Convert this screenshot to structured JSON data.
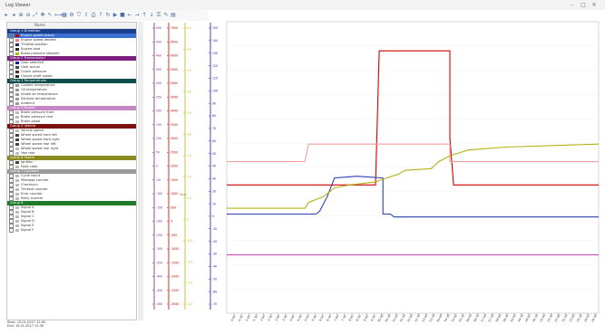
{
  "app": {
    "title": "Log Viewer"
  },
  "window_controls": {
    "minimize": "–",
    "maximize": "□",
    "close": "✕"
  },
  "toolbar": {
    "icons": [
      "open-icon",
      "save-icon",
      "zoom-in-icon",
      "zoom-out-icon",
      "fit-icon",
      "pan-icon",
      "cursor-icon",
      "measure-icon",
      "grid-icon",
      "settings-icon",
      "filter-icon",
      "export-icon",
      "print-icon",
      "help-icon",
      "refresh-icon",
      "play-icon",
      "stop-icon",
      "arrow-left-icon",
      "arrow-right-icon",
      "arrow-up-icon",
      "arrow-down-icon",
      "lock-icon",
      "marker-icon",
      "chart-icon"
    ],
    "glyphs": [
      "▸",
      "◂",
      "⊕",
      "⊖",
      "⤢",
      "✥",
      "↖",
      "⟷",
      "▦",
      "⚙",
      "⛉",
      "⇪",
      "⎙",
      "?",
      "↻",
      "▶",
      "■",
      "←",
      "→",
      "↑",
      "↓",
      "⚿",
      "✎",
      "▤"
    ]
  },
  "panel": {
    "header_label": "Name",
    "groups": [
      {
        "label": "Group 1 Drivetrain",
        "color": "#1b3f8b",
        "rows": [
          {
            "label": "Engine speed actual",
            "swatch": "#c00000",
            "selected": true
          },
          {
            "label": "Engine speed desired",
            "swatch": "#f08080"
          },
          {
            "label": "Throttle position",
            "swatch": "#2a2a6a"
          },
          {
            "label": "Engine load",
            "swatch": "#2a2a2a"
          },
          {
            "label": "Boost pressure setpoint",
            "swatch": "#b8b800"
          }
        ]
      },
      {
        "label": "Group 2 Transmission",
        "color": "#7b1f7b",
        "rows": [
          {
            "label": "Gear selected",
            "swatch": "#1a1aa0"
          },
          {
            "label": "Gear actual",
            "swatch": "#444"
          },
          {
            "label": "Clutch pressure",
            "swatch": "#6a2a2a"
          },
          {
            "label": "Output shaft speed",
            "swatch": "#2a2a2a"
          }
        ]
      },
      {
        "label": "Group 3 Temperatures",
        "color": "#0f4c4c",
        "rows": [
          {
            "label": "Coolant temperature",
            "swatch": "#999"
          },
          {
            "label": "Oil temperature",
            "swatch": "#999"
          },
          {
            "label": "Intake air temperature",
            "swatch": "#999"
          },
          {
            "label": "Exhaust temperature",
            "swatch": "#999"
          },
          {
            "label": "Ambient",
            "swatch": "#999"
          }
        ]
      },
      {
        "label": "Group 4 Brakes",
        "color": "#c487c4",
        "rows": [
          {
            "label": "Brake pressure front",
            "swatch": "#bbb"
          },
          {
            "label": "Brake pressure rear",
            "swatch": "#bbb"
          },
          {
            "label": "Brake pedal",
            "swatch": "#bbb"
          }
        ]
      },
      {
        "label": "Group 5 Vehicle",
        "color": "#7b1010",
        "rows": [
          {
            "label": "Vehicle speed",
            "swatch": "#bbb"
          },
          {
            "label": "Wheel speed front left",
            "swatch": "#444"
          },
          {
            "label": "Wheel speed front right",
            "swatch": "#444"
          },
          {
            "label": "Wheel speed rear left",
            "swatch": "#444"
          },
          {
            "label": "Wheel speed rear right",
            "swatch": "#bbb"
          },
          {
            "label": "Yaw rate",
            "swatch": "#bbb"
          }
        ]
      },
      {
        "label": "Group 6 Status",
        "color": "#8a8a20",
        "rows": [
          {
            "label": "Ignition",
            "swatch": "#444"
          },
          {
            "label": "Fault code",
            "swatch": "#bbb"
          }
        ]
      },
      {
        "label": "Group 7 Counters",
        "color": "#9a9a9a",
        "rows": [
          {
            "label": "Cycle count",
            "swatch": "#bbb"
          },
          {
            "label": "Message counter",
            "swatch": "#bbb"
          },
          {
            "label": "Checksum",
            "swatch": "#bbb"
          },
          {
            "label": "Timeout counter",
            "swatch": "#bbb"
          },
          {
            "label": "Error counter",
            "swatch": "#bbb"
          },
          {
            "label": "Retry counter",
            "swatch": "#bbb"
          }
        ]
      },
      {
        "label": "Group 8",
        "color": "#1f7a2a",
        "rows": [
          {
            "label": "Signal A",
            "swatch": "#bbb"
          },
          {
            "label": "Signal B",
            "swatch": "#bbb"
          },
          {
            "label": "Signal C",
            "swatch": "#bbb"
          },
          {
            "label": "Signal D",
            "swatch": "#bbb"
          },
          {
            "label": "Signal E",
            "swatch": "#bbb"
          },
          {
            "label": "Signal F",
            "swatch": "#bbb"
          }
        ]
      }
    ]
  },
  "status_bar": {
    "line1": "Start: 10.01.2017 12:00",
    "line2": "End: 10.01.2017 12:30"
  },
  "plot": {
    "axes": [
      {
        "color": "#7b1f7b",
        "labels": [
          "500",
          "450",
          "400",
          "350",
          "300",
          "250",
          "200",
          "150",
          "100",
          "50",
          "0",
          "-50",
          "-100",
          "-150",
          "-200",
          "-250",
          "-300",
          "-350",
          "-400",
          "-450",
          "-500"
        ]
      },
      {
        "color": "#c00000",
        "labels": [
          "7000",
          "6500",
          "6000",
          "5500",
          "5000",
          "4500",
          "4000",
          "3500",
          "3000",
          "2500",
          "2000",
          "1500",
          "1000",
          "500",
          "0",
          "-500",
          "-1000",
          "-1500",
          "-2000",
          "-2500",
          "-3000"
        ]
      },
      {
        "color": "#b8b800",
        "labels": [
          "4.5",
          "4.0",
          "3.5",
          "3.0",
          "2.5",
          "2.0",
          "1.5",
          "1.0",
          "0.5",
          "0",
          "-0.5",
          "-1.0",
          "-1.5",
          "-2.0"
        ]
      },
      {
        "color": "#1a1aa0",
        "labels": [
          "150",
          "140",
          "130",
          "120",
          "110",
          "100",
          "90",
          "80",
          "70",
          "60",
          "50",
          "40",
          "30",
          "20",
          "10",
          "0",
          "-10",
          "-20",
          "-30",
          "-40",
          "-50",
          "-60",
          "-70"
        ]
      }
    ],
    "axis_marker": "Gear",
    "xticks": [
      "0:00",
      "0:30",
      "1:00",
      "1:30",
      "2:00",
      "2:30",
      "3:00",
      "3:30",
      "4:00",
      "4:30",
      "5:00",
      "5:30",
      "6:00",
      "6:30",
      "7:00",
      "7:30",
      "8:00",
      "8:30",
      "9:00",
      "9:30",
      "10:00",
      "10:30",
      "11:00",
      "11:30",
      "12:00",
      "12:30",
      "13:00",
      "13:30",
      "14:00",
      "14:30",
      "15:00",
      "15:30",
      "16:00",
      "16:30",
      "17:00",
      "17:30",
      "18:00",
      "18:30",
      "19:00",
      "19:30",
      "20:00",
      "20:30",
      "21:00",
      "21:30",
      "22:00",
      "22:30",
      "23:00",
      "23:30",
      "24:00",
      "24:30"
    ],
    "series": [
      {
        "color": "#d00000",
        "points": [
          [
            0,
            220
          ],
          [
            40,
            220
          ],
          [
            40,
            220
          ],
          [
            41,
            450
          ],
          [
            60,
            450
          ],
          [
            60,
            300
          ],
          [
            61,
            220
          ],
          [
            100,
            220
          ]
        ]
      },
      {
        "color": "#f4a0a0",
        "points": [
          [
            0,
            260
          ],
          [
            21,
            260
          ],
          [
            22,
            290
          ],
          [
            60,
            290
          ],
          [
            60,
            260
          ],
          [
            100,
            260
          ]
        ]
      },
      {
        "color": "#2b3fb0",
        "points": [
          [
            0,
            170
          ],
          [
            24,
            170
          ],
          [
            25,
            175
          ],
          [
            27,
            200
          ],
          [
            29,
            232
          ],
          [
            35,
            235
          ],
          [
            42,
            232
          ],
          [
            42,
            170
          ],
          [
            44,
            170
          ],
          [
            45,
            165
          ],
          [
            100,
            165
          ]
        ]
      },
      {
        "color": "#b5b010",
        "points": [
          [
            0,
            180
          ],
          [
            21,
            180
          ],
          [
            22,
            190
          ],
          [
            26,
            200
          ],
          [
            29,
            215
          ],
          [
            33,
            220
          ],
          [
            40,
            225
          ],
          [
            42,
            230
          ],
          [
            46,
            238
          ],
          [
            48,
            245
          ],
          [
            55,
            248
          ],
          [
            57,
            260
          ],
          [
            60,
            270
          ],
          [
            65,
            280
          ],
          [
            75,
            285
          ],
          [
            100,
            290
          ]
        ]
      },
      {
        "color": "#c050c0",
        "points": [
          [
            0,
            100
          ],
          [
            100,
            100
          ]
        ]
      }
    ],
    "x_range": [
      0,
      100
    ],
    "y_range": [
      0,
      500
    ]
  }
}
